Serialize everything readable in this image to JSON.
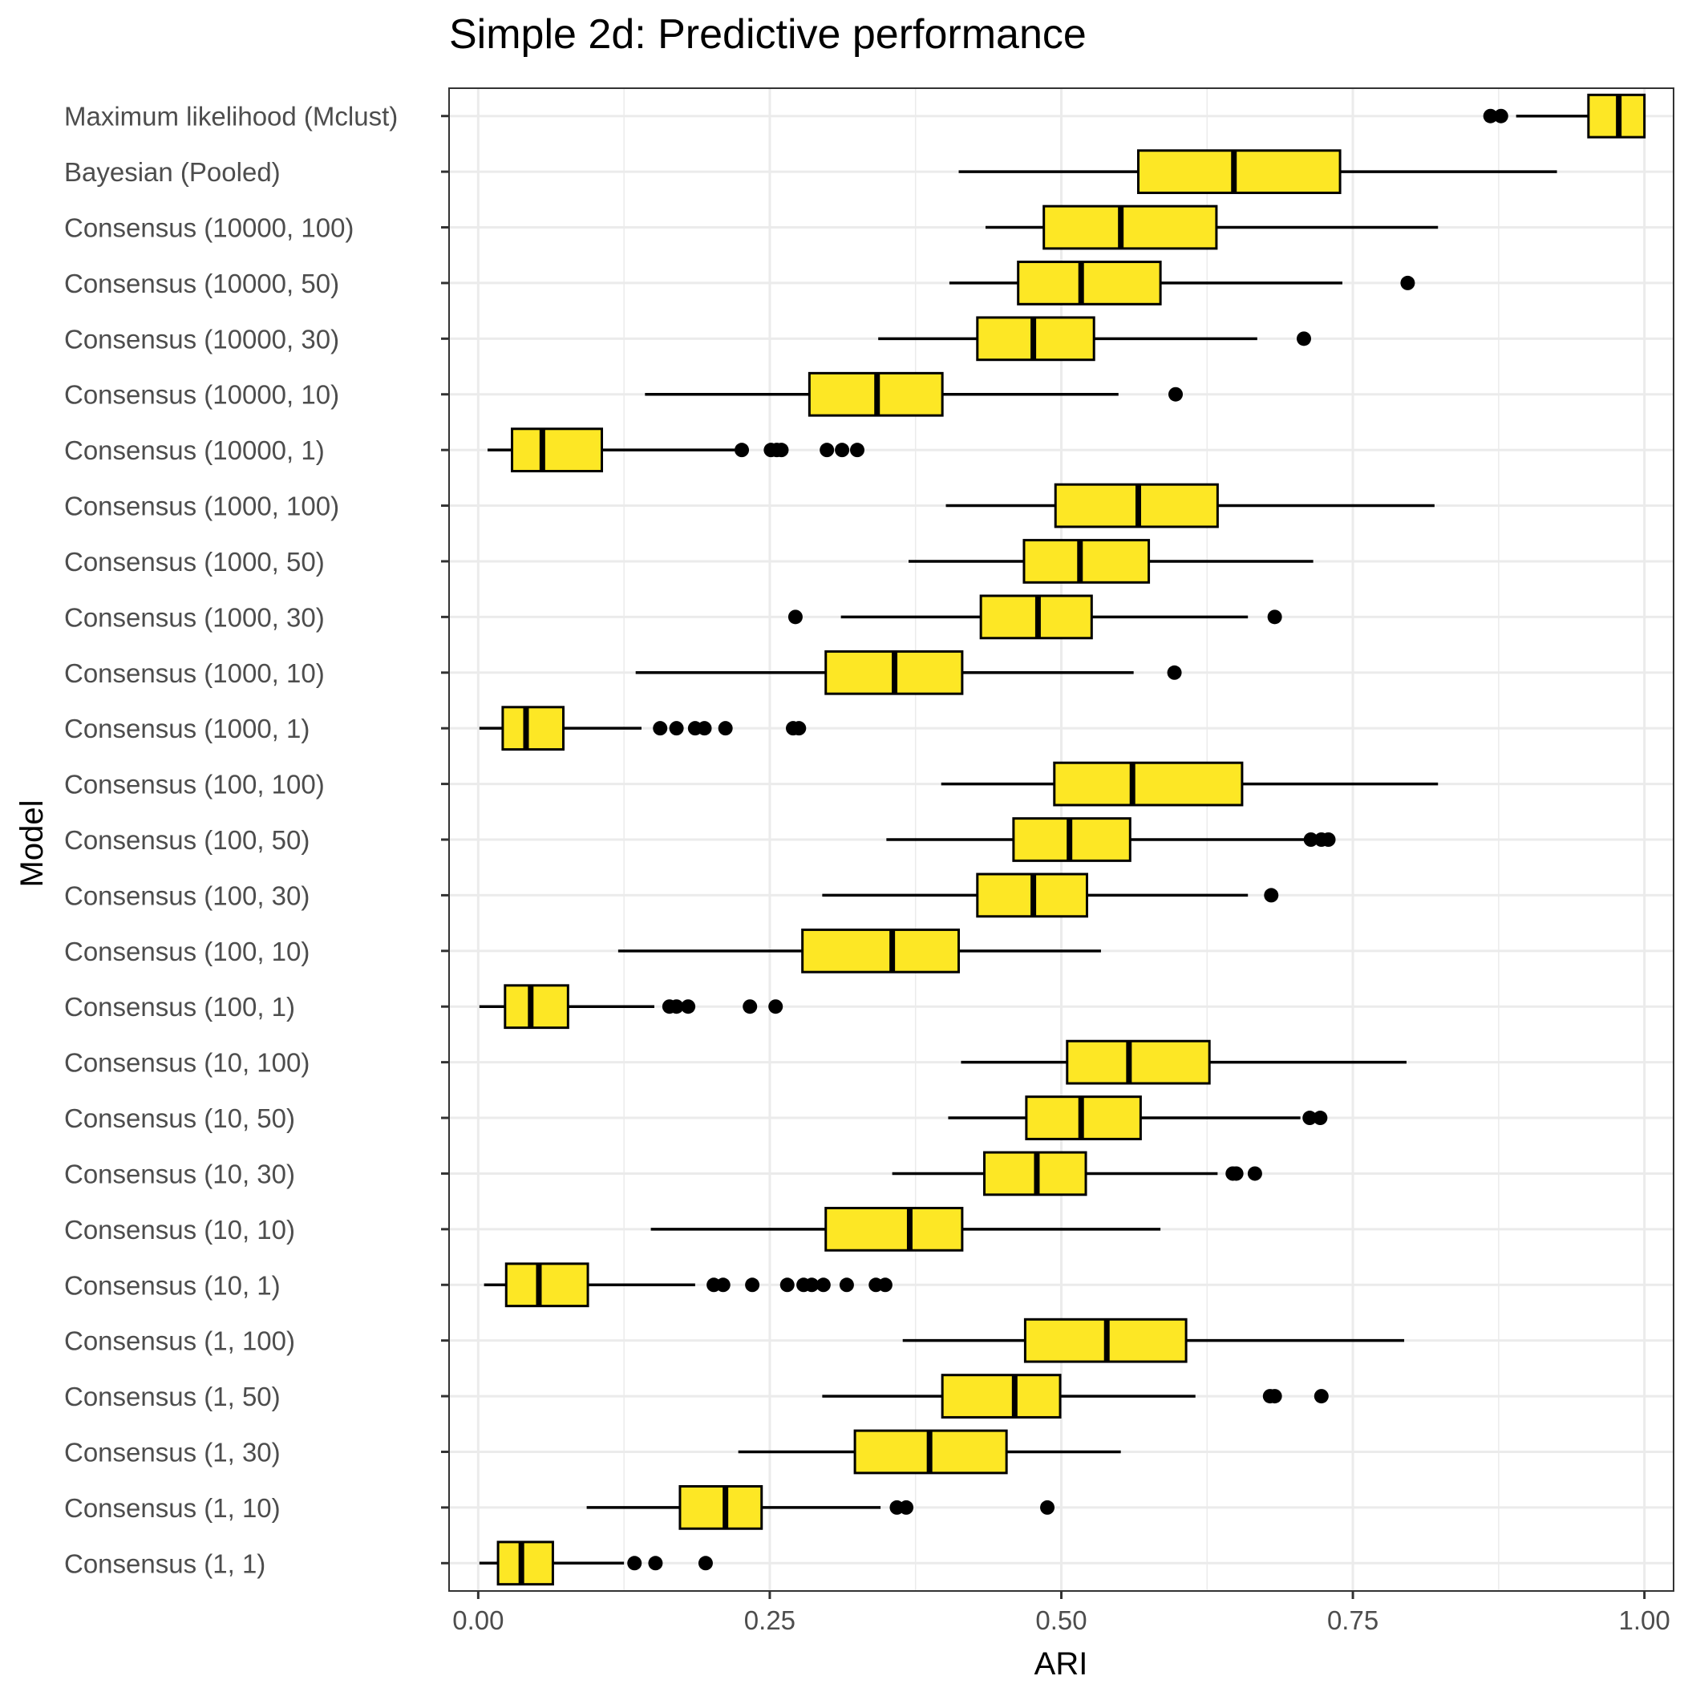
{
  "chart_data": {
    "type": "boxplot",
    "title": "Simple 2d: Predictive performance",
    "xlabel": "ARI",
    "ylabel": "Model",
    "xlim": [
      -0.025,
      1.025
    ],
    "x_ticks": [
      0.0,
      0.25,
      0.5,
      0.75,
      1.0
    ],
    "x_tick_labels": [
      "0.00",
      "0.25",
      "0.50",
      "0.75",
      "1.00"
    ],
    "grid": true,
    "legend": "none",
    "colors": {
      "box_fill": "#FDE725",
      "box_stroke": "#000000",
      "grid": "#EBEBEB",
      "panel_border": "#333333",
      "tick_label": "#4D4D4D"
    },
    "categories": [
      "Maximum likelihood (Mclust)",
      "Bayesian (Pooled)",
      "Consensus (10000, 100)",
      "Consensus (10000, 50)",
      "Consensus (10000, 30)",
      "Consensus (10000, 10)",
      "Consensus (10000, 1)",
      "Consensus (1000, 100)",
      "Consensus (1000, 50)",
      "Consensus (1000, 30)",
      "Consensus (1000, 10)",
      "Consensus (1000, 1)",
      "Consensus (100, 100)",
      "Consensus (100, 50)",
      "Consensus (100, 30)",
      "Consensus (100, 10)",
      "Consensus (100, 1)",
      "Consensus (10, 100)",
      "Consensus (10, 50)",
      "Consensus (10, 30)",
      "Consensus (10, 10)",
      "Consensus (10, 1)",
      "Consensus (1, 100)",
      "Consensus (1, 50)",
      "Consensus (1, 30)",
      "Consensus (1, 10)",
      "Consensus (1, 1)"
    ],
    "boxes": [
      {
        "whisker_low": 0.89,
        "q1": 0.952,
        "median": 0.978,
        "q3": 1.0,
        "whisker_high": 1.0,
        "outliers": [
          0.868,
          0.877
        ]
      },
      {
        "whisker_low": 0.412,
        "q1": 0.566,
        "median": 0.648,
        "q3": 0.739,
        "whisker_high": 0.925,
        "outliers": []
      },
      {
        "whisker_low": 0.435,
        "q1": 0.485,
        "median": 0.551,
        "q3": 0.633,
        "whisker_high": 0.823,
        "outliers": []
      },
      {
        "whisker_low": 0.404,
        "q1": 0.463,
        "median": 0.517,
        "q3": 0.585,
        "whisker_high": 0.741,
        "outliers": [
          0.797
        ]
      },
      {
        "whisker_low": 0.343,
        "q1": 0.428,
        "median": 0.476,
        "q3": 0.528,
        "whisker_high": 0.668,
        "outliers": [
          0.708
        ]
      },
      {
        "whisker_low": 0.143,
        "q1": 0.284,
        "median": 0.342,
        "q3": 0.398,
        "whisker_high": 0.549,
        "outliers": [
          0.598
        ]
      },
      {
        "whisker_low": 0.008,
        "q1": 0.029,
        "median": 0.055,
        "q3": 0.106,
        "whisker_high": 0.22,
        "outliers": [
          0.226,
          0.251,
          0.256,
          0.26,
          0.299,
          0.312,
          0.325
        ]
      },
      {
        "whisker_low": 0.401,
        "q1": 0.495,
        "median": 0.566,
        "q3": 0.634,
        "whisker_high": 0.82,
        "outliers": []
      },
      {
        "whisker_low": 0.369,
        "q1": 0.468,
        "median": 0.516,
        "q3": 0.575,
        "whisker_high": 0.716,
        "outliers": []
      },
      {
        "whisker_low": 0.311,
        "q1": 0.431,
        "median": 0.48,
        "q3": 0.526,
        "whisker_high": 0.66,
        "outliers": [
          0.272,
          0.683
        ]
      },
      {
        "whisker_low": 0.135,
        "q1": 0.298,
        "median": 0.357,
        "q3": 0.415,
        "whisker_high": 0.562,
        "outliers": [
          0.597
        ]
      },
      {
        "whisker_low": 0.001,
        "q1": 0.021,
        "median": 0.041,
        "q3": 0.073,
        "whisker_high": 0.14,
        "outliers": [
          0.156,
          0.17,
          0.186,
          0.194,
          0.212,
          0.27,
          0.275
        ]
      },
      {
        "whisker_low": 0.397,
        "q1": 0.494,
        "median": 0.561,
        "q3": 0.655,
        "whisker_high": 0.823,
        "outliers": []
      },
      {
        "whisker_low": 0.35,
        "q1": 0.459,
        "median": 0.507,
        "q3": 0.559,
        "whisker_high": 0.708,
        "outliers": [
          0.714,
          0.723,
          0.729
        ]
      },
      {
        "whisker_low": 0.295,
        "q1": 0.428,
        "median": 0.476,
        "q3": 0.522,
        "whisker_high": 0.66,
        "outliers": [
          0.68
        ]
      },
      {
        "whisker_low": 0.12,
        "q1": 0.278,
        "median": 0.355,
        "q3": 0.412,
        "whisker_high": 0.534,
        "outliers": []
      },
      {
        "whisker_low": 0.001,
        "q1": 0.023,
        "median": 0.045,
        "q3": 0.077,
        "whisker_high": 0.151,
        "outliers": [
          0.164,
          0.17,
          0.18,
          0.233,
          0.255
        ]
      },
      {
        "whisker_low": 0.414,
        "q1": 0.505,
        "median": 0.558,
        "q3": 0.627,
        "whisker_high": 0.796,
        "outliers": []
      },
      {
        "whisker_low": 0.403,
        "q1": 0.47,
        "median": 0.517,
        "q3": 0.568,
        "whisker_high": 0.705,
        "outliers": [
          0.713,
          0.722
        ]
      },
      {
        "whisker_low": 0.355,
        "q1": 0.434,
        "median": 0.479,
        "q3": 0.521,
        "whisker_high": 0.634,
        "outliers": [
          0.647,
          0.65,
          0.666
        ]
      },
      {
        "whisker_low": 0.148,
        "q1": 0.298,
        "median": 0.37,
        "q3": 0.415,
        "whisker_high": 0.585,
        "outliers": []
      },
      {
        "whisker_low": 0.005,
        "q1": 0.024,
        "median": 0.052,
        "q3": 0.094,
        "whisker_high": 0.186,
        "outliers": [
          0.202,
          0.21,
          0.235,
          0.265,
          0.279,
          0.286,
          0.296,
          0.316,
          0.341,
          0.349
        ]
      },
      {
        "whisker_low": 0.364,
        "q1": 0.469,
        "median": 0.539,
        "q3": 0.607,
        "whisker_high": 0.794,
        "outliers": []
      },
      {
        "whisker_low": 0.295,
        "q1": 0.398,
        "median": 0.46,
        "q3": 0.499,
        "whisker_high": 0.615,
        "outliers": [
          0.679,
          0.683,
          0.723
        ]
      },
      {
        "whisker_low": 0.223,
        "q1": 0.323,
        "median": 0.387,
        "q3": 0.453,
        "whisker_high": 0.551,
        "outliers": []
      },
      {
        "whisker_low": 0.093,
        "q1": 0.173,
        "median": 0.212,
        "q3": 0.243,
        "whisker_high": 0.345,
        "outliers": [
          0.359,
          0.367,
          0.488
        ]
      },
      {
        "whisker_low": 0.001,
        "q1": 0.017,
        "median": 0.037,
        "q3": 0.064,
        "whisker_high": 0.125,
        "outliers": [
          0.134,
          0.152,
          0.195
        ]
      }
    ]
  }
}
